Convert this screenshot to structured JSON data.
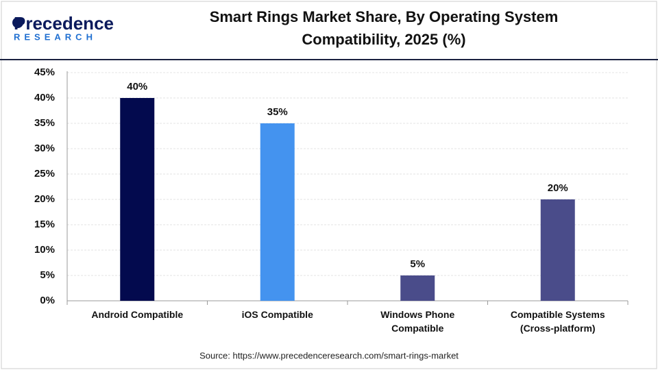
{
  "logo": {
    "name": "Precedence",
    "sub": "RESEARCH"
  },
  "chart_data": {
    "type": "bar",
    "title": "Smart Rings Market Share, By Operating System Compatibility, 2025 (%)",
    "categories": [
      "Android Compatible",
      "iOS Compatible",
      "Windows Phone Compatible",
      "Compatible Systems (Cross-platform)"
    ],
    "values": [
      40,
      35,
      5,
      20
    ],
    "value_labels": [
      "40%",
      "35%",
      "5%",
      "20%"
    ],
    "colors": [
      "#030a4e",
      "#4493ef",
      "#4a4c8a",
      "#4a4c8a"
    ],
    "ylim": [
      0,
      45
    ],
    "yticks": [
      {
        "value": 0,
        "label": "0%"
      },
      {
        "value": 5,
        "label": "5%"
      },
      {
        "value": 10,
        "label": "10%"
      },
      {
        "value": 15,
        "label": "15%"
      },
      {
        "value": 20,
        "label": "20%"
      },
      {
        "value": 25,
        "label": "25%"
      },
      {
        "value": 30,
        "label": "30%"
      },
      {
        "value": 35,
        "label": "35%"
      },
      {
        "value": 40,
        "label": "40%"
      },
      {
        "value": 45,
        "label": "45%"
      }
    ],
    "grid": true,
    "source": "Source: https://www.precedenceresearch.com/smart-rings-market"
  }
}
